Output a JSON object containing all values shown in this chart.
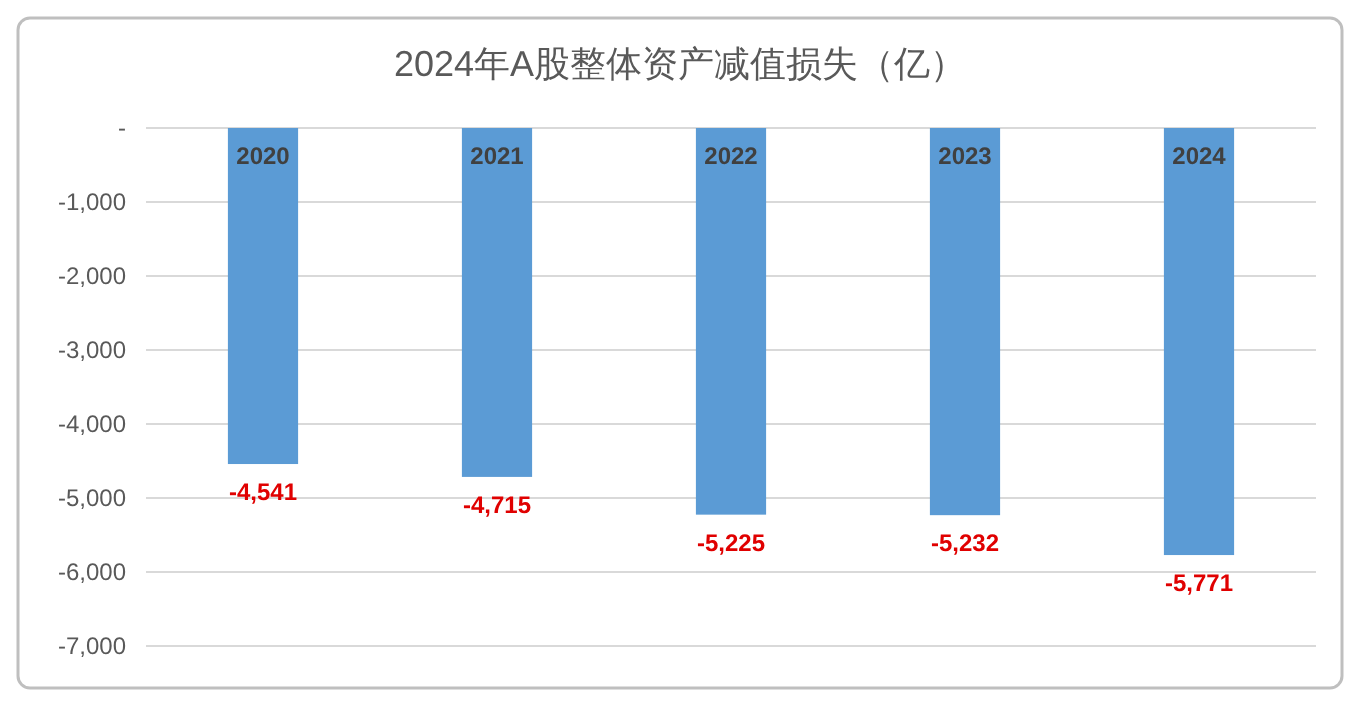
{
  "chart_data": {
    "type": "bar",
    "title": "2024年A股整体资产减值损失（亿）",
    "categories": [
      "2020",
      "2021",
      "2022",
      "2023",
      "2024"
    ],
    "values": [
      -4541,
      -4715,
      -5225,
      -5232,
      -5771
    ],
    "value_labels": [
      "-4,541",
      "-4,715",
      "-5,225",
      "-5,232",
      "-5,771"
    ],
    "color": "#5b9bd5",
    "ylim": [
      -7000,
      0
    ],
    "yticks": [
      {
        "value": 0,
        "label": "-"
      },
      {
        "value": -1000,
        "label": "-1,000"
      },
      {
        "value": -2000,
        "label": "-2,000"
      },
      {
        "value": -3000,
        "label": "-3,000"
      },
      {
        "value": -4000,
        "label": "-4,000"
      },
      {
        "value": -5000,
        "label": "-5,000"
      },
      {
        "value": -6000,
        "label": "-6,000"
      },
      {
        "value": -7000,
        "label": "-7,000"
      }
    ],
    "grid": "y"
  }
}
